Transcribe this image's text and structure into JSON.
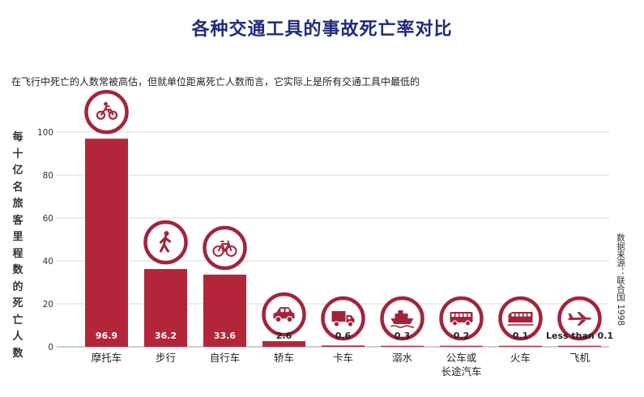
{
  "title": "各种交通工具的事故死亡率对比",
  "subtitle": "在飞行中死亡的人数常被高估，但就单位距离死亡人数而言，它实际上是所有交通工具中最低的",
  "source": "数据来源：联合国 1998",
  "colors": {
    "bar": "#b32538",
    "icon": "#a3243a",
    "grid": "#d9d9d9",
    "title": "#1f2a7a"
  },
  "chart_data": {
    "type": "bar",
    "title": "各种交通工具的事故死亡率对比",
    "ylabel": "每十亿名旅客里程数的死亡人数",
    "ylim": [
      0,
      100
    ],
    "yticks": [
      0,
      20,
      40,
      60,
      80,
      100
    ],
    "grid": true,
    "categories": [
      "摩托车",
      "步行",
      "自行车",
      "轿车",
      "卡车",
      "溺水",
      "公车或长途汽车",
      "火车",
      "飞机"
    ],
    "category_lines": [
      [
        "摩托车"
      ],
      [
        "步行"
      ],
      [
        "自行车"
      ],
      [
        "轿车"
      ],
      [
        "卡车"
      ],
      [
        "溺水"
      ],
      [
        "公车或",
        "长途汽车"
      ],
      [
        "火车"
      ],
      [
        "飞机"
      ]
    ],
    "values": [
      96.9,
      36.2,
      33.6,
      2.6,
      0.6,
      0.3,
      0.2,
      0.1,
      0.05
    ],
    "value_labels": [
      "96.9",
      "36.2",
      "33.6",
      "2.6",
      "0.6",
      "0.3",
      "0.2",
      "0.1",
      "Less than 0.1"
    ],
    "icons": [
      "motorcycle-icon",
      "pedestrian-icon",
      "bicycle-icon",
      "car-icon",
      "truck-icon",
      "ship-icon",
      "bus-icon",
      "train-icon",
      "airplane-icon"
    ]
  }
}
